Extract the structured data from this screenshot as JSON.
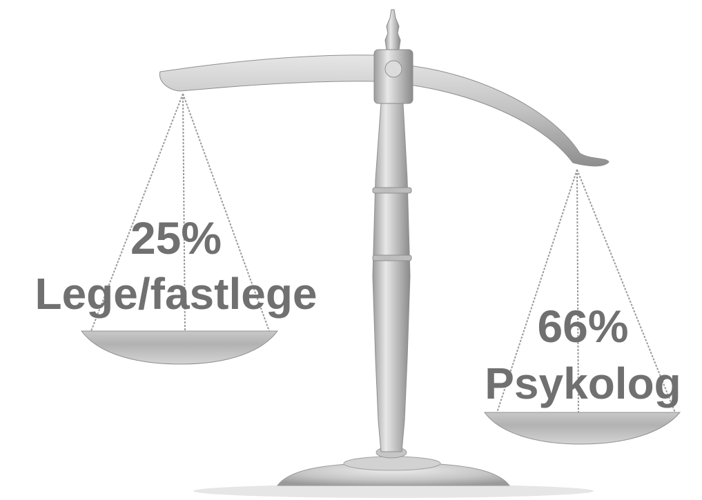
{
  "left_pan": {
    "percent": "25%",
    "label": "Lege/fastlege",
    "level": 0.25
  },
  "right_pan": {
    "percent": "66%",
    "label": "Psykolog",
    "level": 0.66
  },
  "colors": {
    "text": "#707070",
    "metal_light": "#e4e4e4",
    "metal_mid": "#b5b5b5",
    "metal_dark": "#8a8a8a",
    "chain": "#9a9a9a"
  },
  "icons": {
    "scale": "balance-scale-icon"
  }
}
